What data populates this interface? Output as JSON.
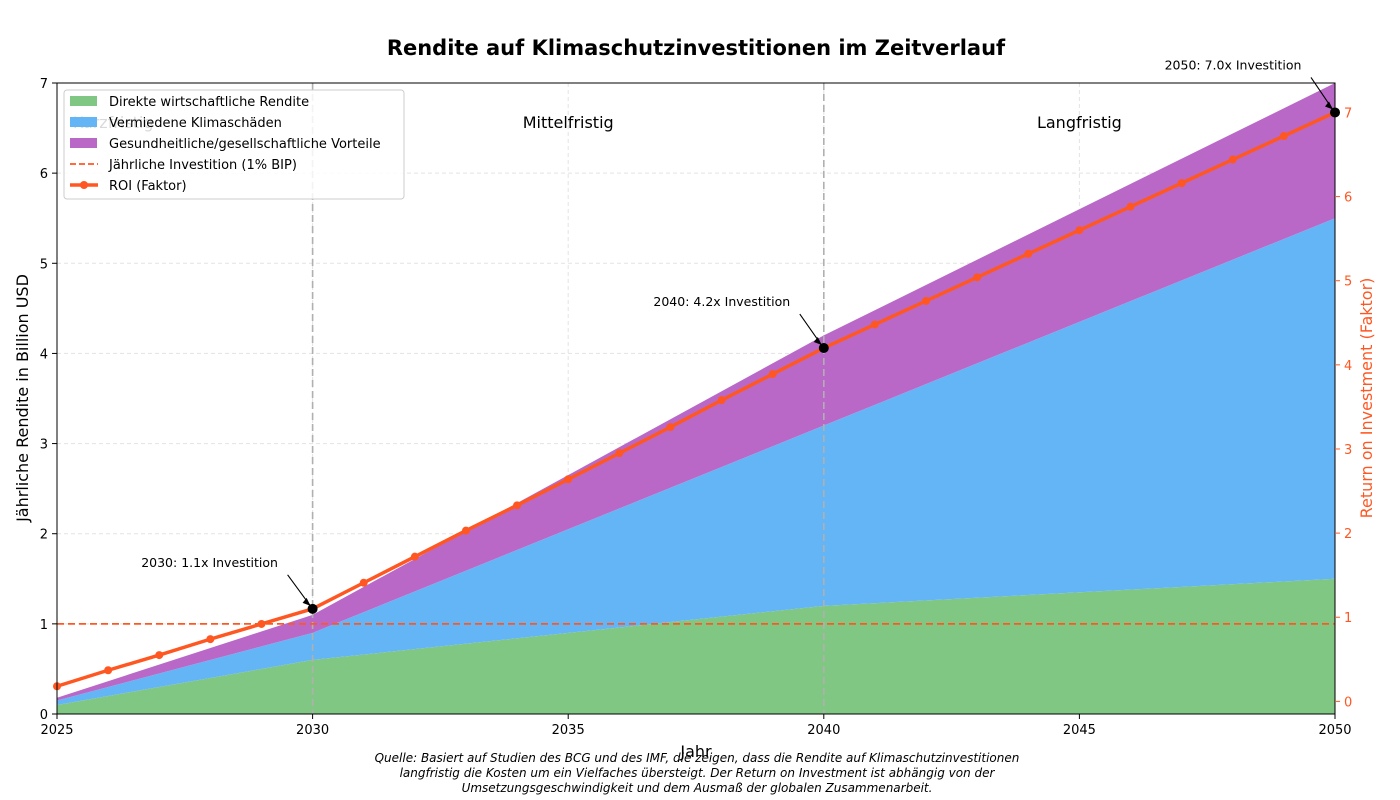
{
  "chart_data": {
    "type": "area",
    "title": "Rendite auf Klimaschutzinvestitionen im Zeitverlauf",
    "xlabel": "Jahr",
    "ylabel": "Jährliche Rendite in Billion USD",
    "ylabel_right": "Return on Investment (Faktor)",
    "xlim": [
      2025,
      2050
    ],
    "ylim": [
      0,
      7
    ],
    "ylim_right": [
      -0.15,
      7.35
    ],
    "x_ticks": [
      "2025",
      "2030",
      "2035",
      "2040",
      "2045",
      "2050"
    ],
    "y_ticks": [
      "0",
      "1",
      "2",
      "3",
      "4",
      "5",
      "6",
      "7"
    ],
    "y_ticks_right": [
      "0",
      "1",
      "2",
      "3",
      "4",
      "5",
      "6",
      "7"
    ],
    "grid": true,
    "legend_position": "top-left",
    "colors": {
      "direct": "#81c784",
      "avoided": "#64b5f6",
      "health": "#ba68c8",
      "roi": "#ff5722",
      "investment": "#ff5722",
      "phase_line": "#b0b0b0"
    },
    "x_breakpoints": [
      2025,
      2030,
      2040,
      2050
    ],
    "stacked_series": [
      {
        "name": "Direkte wirtschaftliche Rendite",
        "color": "#81c784",
        "values": [
          0.1,
          0.6,
          1.2,
          1.5
        ]
      },
      {
        "name": "Vermiedene Klimaschäden",
        "color": "#64b5f6",
        "values": [
          0.05,
          0.3,
          2.0,
          4.0
        ]
      },
      {
        "name": "Gesundheitliche/gesellschaftliche Vorteile",
        "color": "#ba68c8",
        "values": [
          0.03,
          0.2,
          1.0,
          1.5
        ]
      }
    ],
    "investment_line": {
      "name": "Jährliche Investition (1% BIP)",
      "value": 1.0
    },
    "roi_series": {
      "name": "ROI (Faktor)",
      "x": [
        2025,
        2026,
        2027,
        2028,
        2029,
        2030,
        2031,
        2032,
        2033,
        2034,
        2035,
        2036,
        2037,
        2038,
        2039,
        2040,
        2041,
        2042,
        2043,
        2044,
        2045,
        2046,
        2047,
        2048,
        2049,
        2050
      ],
      "values": [
        0.18,
        0.37,
        0.55,
        0.74,
        0.92,
        1.1,
        1.41,
        1.72,
        2.03,
        2.33,
        2.64,
        2.95,
        3.26,
        3.58,
        3.89,
        4.2,
        4.48,
        4.76,
        5.04,
        5.32,
        5.6,
        5.88,
        6.16,
        6.44,
        6.72,
        7.0
      ]
    },
    "phases": [
      {
        "label": "Kurzfristig",
        "at": 2026.1
      },
      {
        "label": "Mittelfristig",
        "at": 2035
      },
      {
        "label": "Langfristig",
        "at": 2045
      }
    ],
    "phase_dividers": [
      2030,
      2040
    ],
    "annotations": [
      {
        "text": "2030: 1.1x Investition",
        "x": 2030,
        "y": 1.1
      },
      {
        "text": "2040: 4.2x Investition",
        "x": 2040,
        "y": 4.2
      },
      {
        "text": "2050: 7.0x Investition",
        "x": 2050,
        "y": 7.0
      }
    ],
    "source_lines": [
      "Quelle: Basiert auf Studien des BCG und des IMF, die zeigen, dass die Rendite auf Klimaschutzinvestitionen",
      "langfristig die Kosten um ein Vielfaches übersteigt. Der Return on Investment ist abhängig von der",
      "Umsetzungsgeschwindigkeit und dem Ausmaß der globalen Zusammenarbeit."
    ]
  }
}
